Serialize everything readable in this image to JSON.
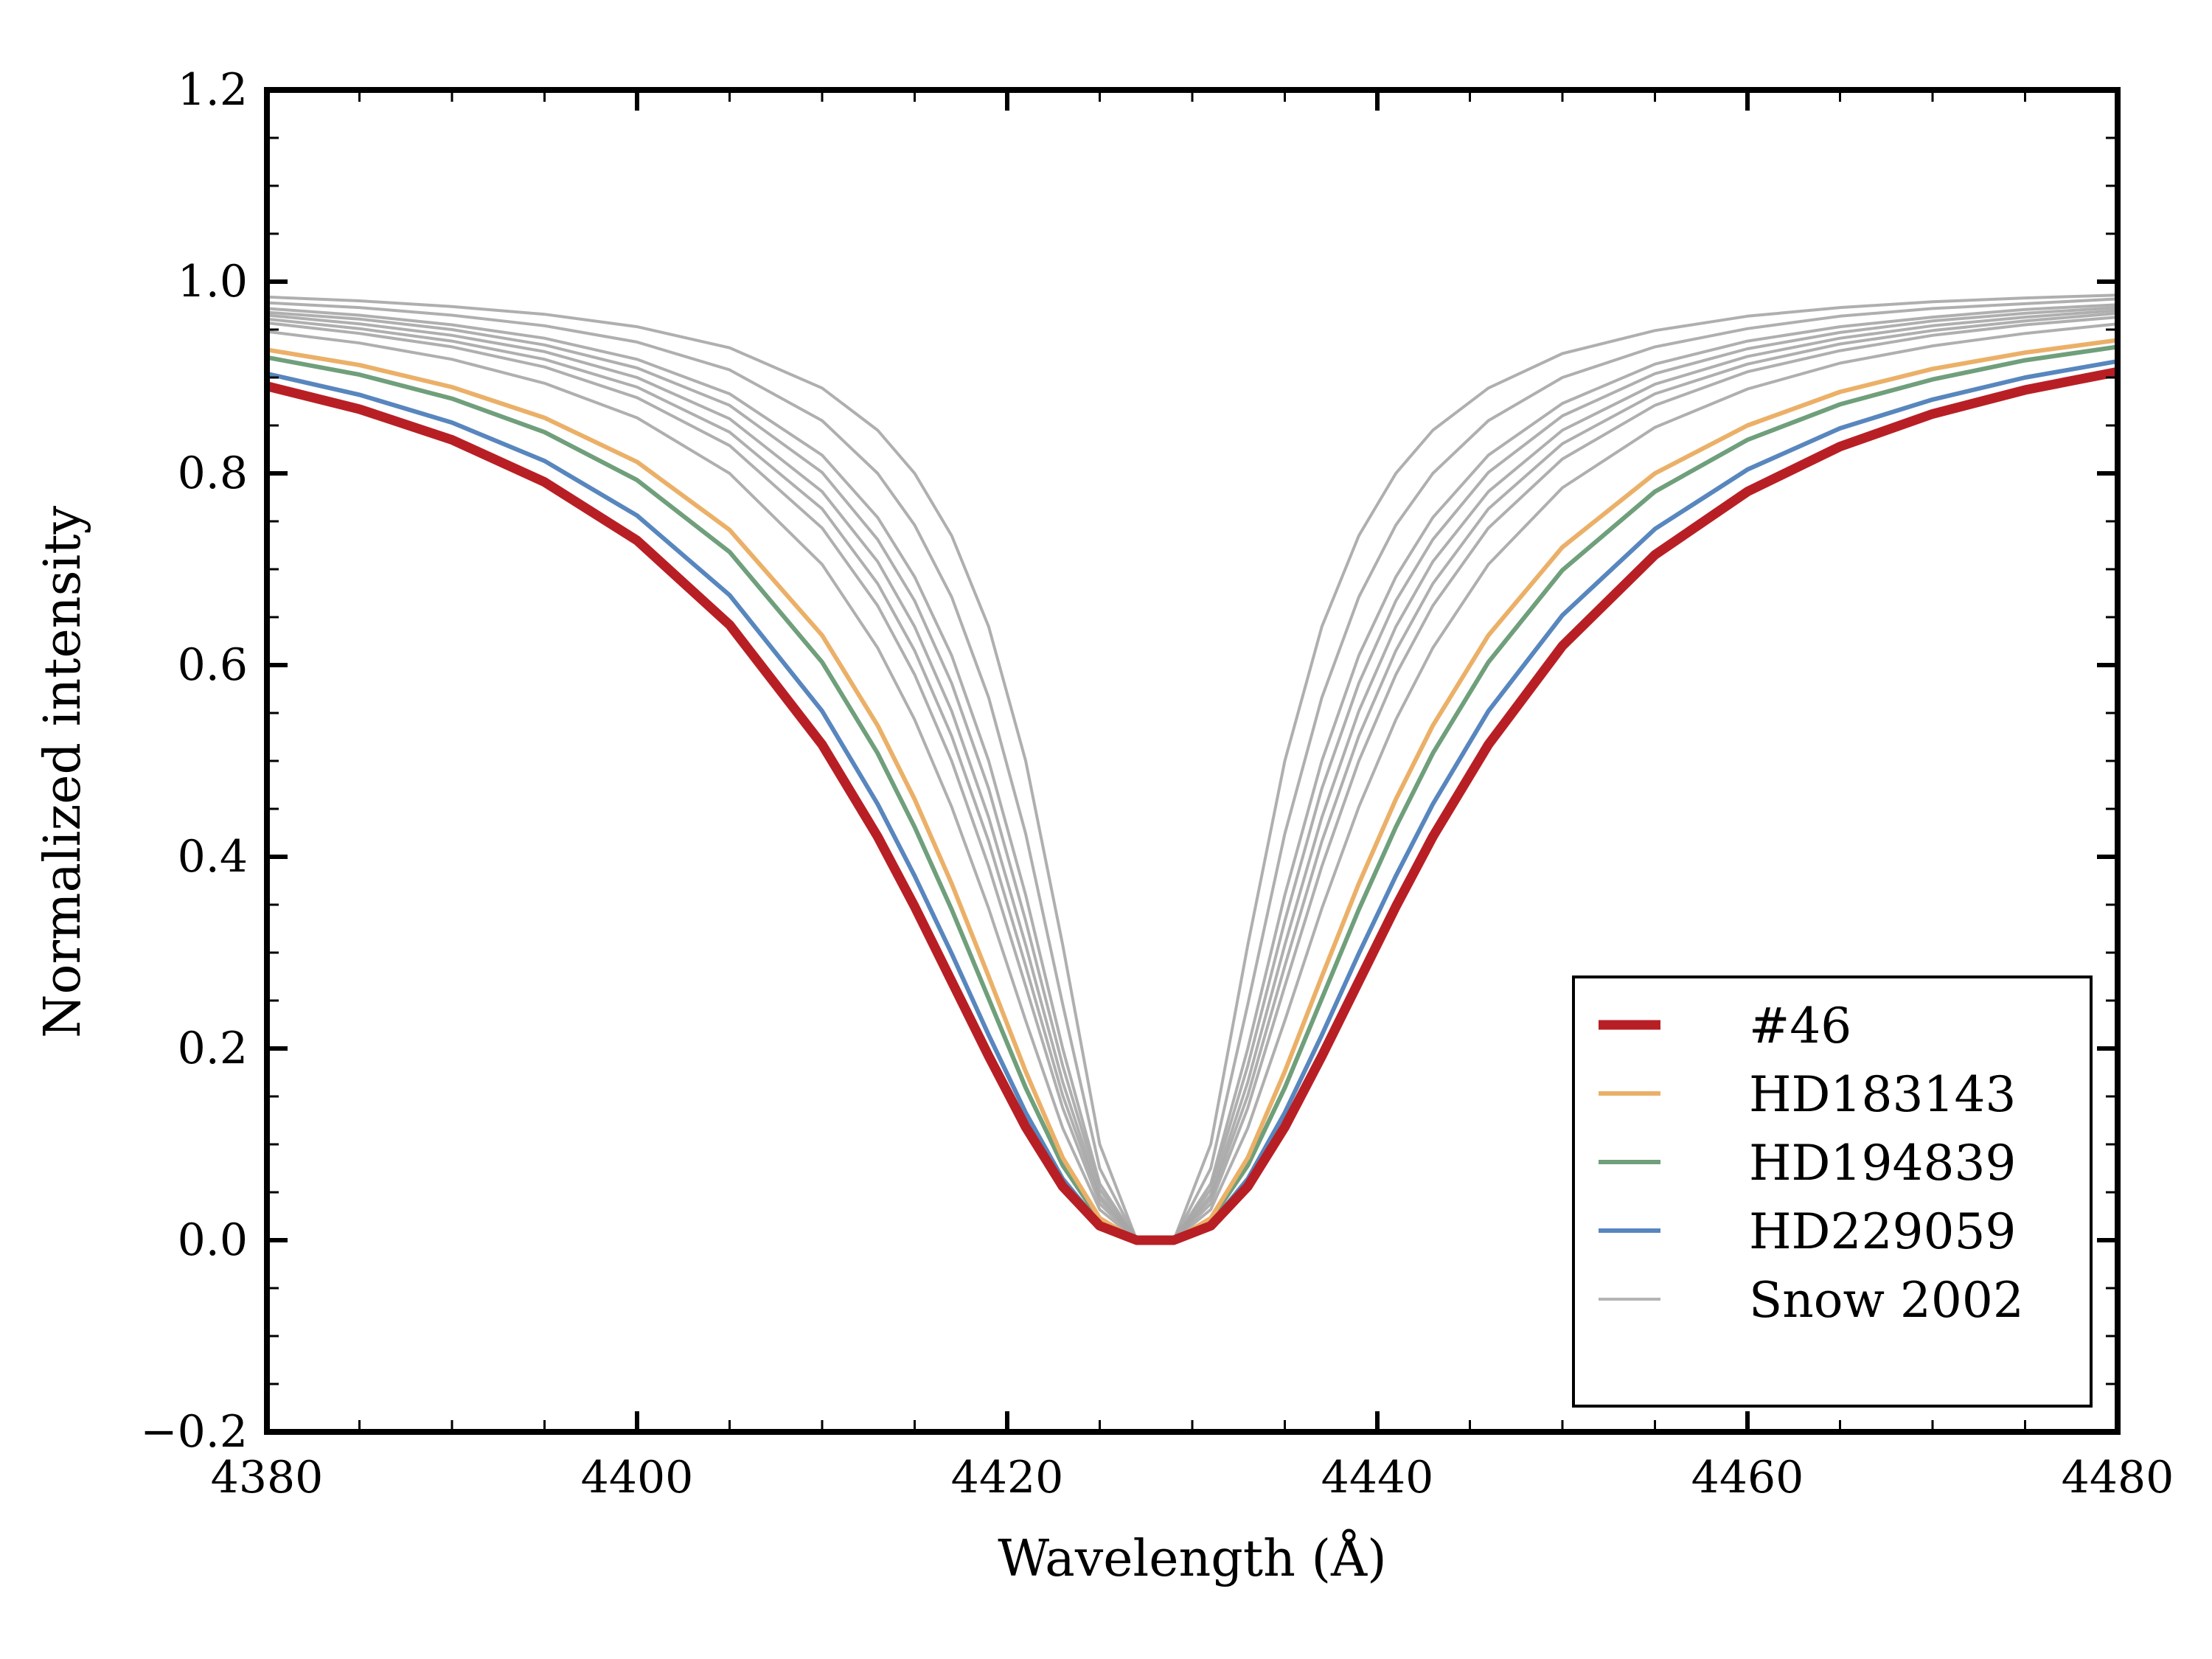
{
  "chart_data": {
    "type": "line",
    "title": "",
    "xlabel": "Wavelength (Å)",
    "ylabel": "Normalized intensity",
    "xlim": [
      4380,
      4480
    ],
    "ylim": [
      -0.2,
      1.2
    ],
    "xticks": [
      4380,
      4400,
      4420,
      4440,
      4460,
      4480
    ],
    "xtick_labels": [
      "4380",
      "4400",
      "4420",
      "4440",
      "4460",
      "4480"
    ],
    "yticks": [
      -0.2,
      0.0,
      0.2,
      0.4,
      0.6,
      0.8,
      1.0,
      1.2
    ],
    "ytick_labels": [
      "−0.2",
      "0.0",
      "0.2",
      "0.4",
      "0.6",
      "0.8",
      "1.0",
      "1.2"
    ],
    "x_minor_step": 5,
    "y_minor_step": 0.05,
    "grid": false,
    "legend_position": "lower-right",
    "x": [
      4380,
      4385,
      4390,
      4395,
      4400,
      4405,
      4410,
      4413,
      4415,
      4417,
      4419,
      4421,
      4423,
      4425,
      4427,
      4429,
      4431,
      4433,
      4435,
      4437,
      4439,
      4441,
      4443,
      4446,
      4450,
      4455,
      4460,
      4465,
      4470,
      4475,
      4480
    ],
    "series": [
      {
        "name": "Snow 2002",
        "color": "#a6a6a6",
        "role": "reference",
        "curves": [
          [
            0.984,
            0.98,
            0.974,
            0.966,
            0.953,
            0.931,
            0.889,
            0.845,
            0.8,
            0.735,
            0.64,
            0.5,
            0.308,
            0.1,
            0,
            0,
            0.1,
            0.308,
            0.5,
            0.64,
            0.735,
            0.8,
            0.845,
            0.889,
            0.925,
            0.949,
            0.964,
            0.973,
            0.979,
            0.983,
            0.986
          ],
          [
            0.978,
            0.973,
            0.965,
            0.954,
            0.937,
            0.908,
            0.855,
            0.8,
            0.746,
            0.671,
            0.566,
            0.424,
            0.246,
            0.075,
            0,
            0,
            0.075,
            0.246,
            0.424,
            0.566,
            0.671,
            0.746,
            0.8,
            0.855,
            0.9,
            0.932,
            0.951,
            0.964,
            0.972,
            0.977,
            0.982
          ],
          [
            0.972,
            0.965,
            0.955,
            0.941,
            0.919,
            0.883,
            0.819,
            0.754,
            0.692,
            0.61,
            0.5,
            0.36,
            0.2,
            0.059,
            0,
            0,
            0.059,
            0.2,
            0.36,
            0.5,
            0.61,
            0.692,
            0.754,
            0.819,
            0.873,
            0.914,
            0.938,
            0.953,
            0.963,
            0.971,
            0.976
          ],
          [
            0.968,
            0.961,
            0.95,
            0.934,
            0.91,
            0.871,
            0.801,
            0.731,
            0.667,
            0.581,
            0.471,
            0.333,
            0.182,
            0.053,
            0,
            0,
            0.053,
            0.182,
            0.333,
            0.471,
            0.581,
            0.667,
            0.731,
            0.801,
            0.86,
            0.904,
            0.93,
            0.947,
            0.959,
            0.967,
            0.973
          ],
          [
            0.965,
            0.956,
            0.944,
            0.927,
            0.9,
            0.857,
            0.781,
            0.708,
            0.64,
            0.552,
            0.441,
            0.308,
            0.165,
            0.047,
            0,
            0,
            0.047,
            0.165,
            0.308,
            0.441,
            0.552,
            0.64,
            0.708,
            0.781,
            0.845,
            0.893,
            0.922,
            0.941,
            0.954,
            0.963,
            0.97
          ],
          [
            0.961,
            0.951,
            0.938,
            0.919,
            0.89,
            0.843,
            0.763,
            0.685,
            0.615,
            0.526,
            0.416,
            0.286,
            0.151,
            0.043,
            0,
            0,
            0.043,
            0.151,
            0.286,
            0.416,
            0.526,
            0.615,
            0.685,
            0.763,
            0.831,
            0.883,
            0.914,
            0.935,
            0.949,
            0.959,
            0.967
          ],
          [
            0.957,
            0.946,
            0.932,
            0.911,
            0.879,
            0.829,
            0.743,
            0.662,
            0.59,
            0.5,
            0.39,
            0.265,
            0.138,
            0.038,
            0,
            0,
            0.038,
            0.138,
            0.265,
            0.39,
            0.5,
            0.59,
            0.662,
            0.743,
            0.815,
            0.871,
            0.906,
            0.928,
            0.944,
            0.955,
            0.963
          ],
          [
            0.948,
            0.936,
            0.919,
            0.894,
            0.858,
            0.8,
            0.705,
            0.618,
            0.543,
            0.452,
            0.346,
            0.229,
            0.117,
            0.032,
            0,
            0,
            0.032,
            0.117,
            0.229,
            0.346,
            0.452,
            0.543,
            0.618,
            0.705,
            0.785,
            0.848,
            0.888,
            0.915,
            0.933,
            0.946,
            0.956
          ]
        ]
      },
      {
        "name": "HD229059",
        "color": "#5886be",
        "role": "comparison",
        "values": [
          0.904,
          0.882,
          0.853,
          0.813,
          0.756,
          0.673,
          0.552,
          0.455,
          0.38,
          0.299,
          0.214,
          0.133,
          0.064,
          0.017,
          0,
          0,
          0.017,
          0.064,
          0.133,
          0.214,
          0.299,
          0.38,
          0.455,
          0.552,
          0.652,
          0.742,
          0.804,
          0.847,
          0.877,
          0.9,
          0.917
        ]
      },
      {
        "name": "HD194839",
        "color": "#6f9f7b",
        "role": "comparison",
        "values": [
          0.921,
          0.903,
          0.878,
          0.843,
          0.793,
          0.718,
          0.603,
          0.508,
          0.431,
          0.345,
          0.252,
          0.159,
          0.078,
          0.021,
          0,
          0,
          0.021,
          0.078,
          0.159,
          0.252,
          0.345,
          0.431,
          0.508,
          0.603,
          0.699,
          0.781,
          0.835,
          0.872,
          0.898,
          0.918,
          0.932
        ]
      },
      {
        "name": "HD183143",
        "color": "#ebb068",
        "role": "comparison",
        "values": [
          0.929,
          0.913,
          0.89,
          0.858,
          0.812,
          0.741,
          0.631,
          0.537,
          0.46,
          0.372,
          0.275,
          0.176,
          0.086,
          0.023,
          0,
          0,
          0.023,
          0.086,
          0.176,
          0.275,
          0.372,
          0.46,
          0.537,
          0.631,
          0.723,
          0.8,
          0.85,
          0.885,
          0.909,
          0.926,
          0.939
        ]
      },
      {
        "name": "#46",
        "color": "#b81f25",
        "role": "target",
        "values": [
          0.891,
          0.867,
          0.835,
          0.791,
          0.73,
          0.642,
          0.517,
          0.421,
          0.348,
          0.27,
          0.192,
          0.118,
          0.056,
          0.015,
          0,
          0,
          0.015,
          0.056,
          0.118,
          0.192,
          0.27,
          0.348,
          0.421,
          0.517,
          0.62,
          0.715,
          0.781,
          0.828,
          0.862,
          0.887,
          0.906
        ]
      }
    ],
    "legend": [
      {
        "label": "#46",
        "color": "#b81f25"
      },
      {
        "label": "HD183143",
        "color": "#ebb068"
      },
      {
        "label": "HD194839",
        "color": "#6f9f7b"
      },
      {
        "label": "HD229059",
        "color": "#5886be"
      },
      {
        "label": "Snow 2002",
        "color": "#b3b3b3"
      }
    ]
  }
}
